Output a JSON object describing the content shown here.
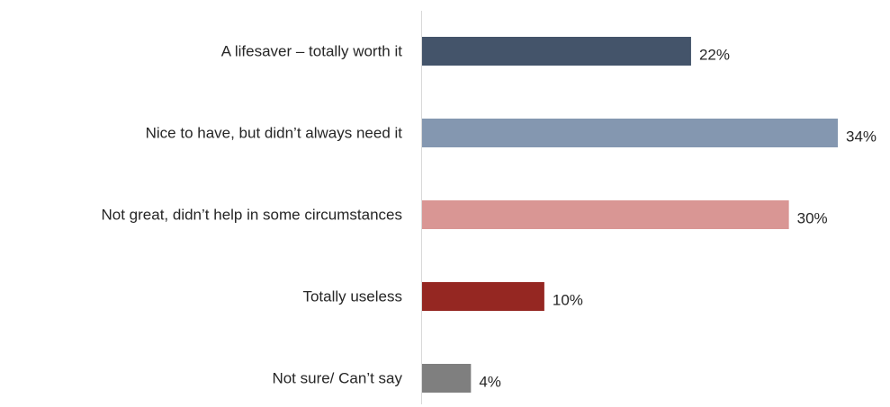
{
  "chart_data": {
    "type": "bar",
    "orientation": "horizontal",
    "title": "",
    "xlabel": "",
    "ylabel": "",
    "categories": [
      "A lifesaver – totally worth it",
      "Nice to have, but didn’t always need it",
      "Not great, didn’t help in some circumstances",
      "Totally useless",
      "Not sure/ Can’t say"
    ],
    "values": [
      22,
      34,
      30,
      10,
      4
    ],
    "value_labels": [
      "22%",
      "34%",
      "30%",
      "10%",
      "4%"
    ],
    "bar_colors": [
      "#44546a",
      "#8497b0",
      "#d99694",
      "#952722",
      "#7f7f7f"
    ],
    "xlim": [
      0,
      34
    ],
    "grid": false,
    "legend": "none"
  }
}
